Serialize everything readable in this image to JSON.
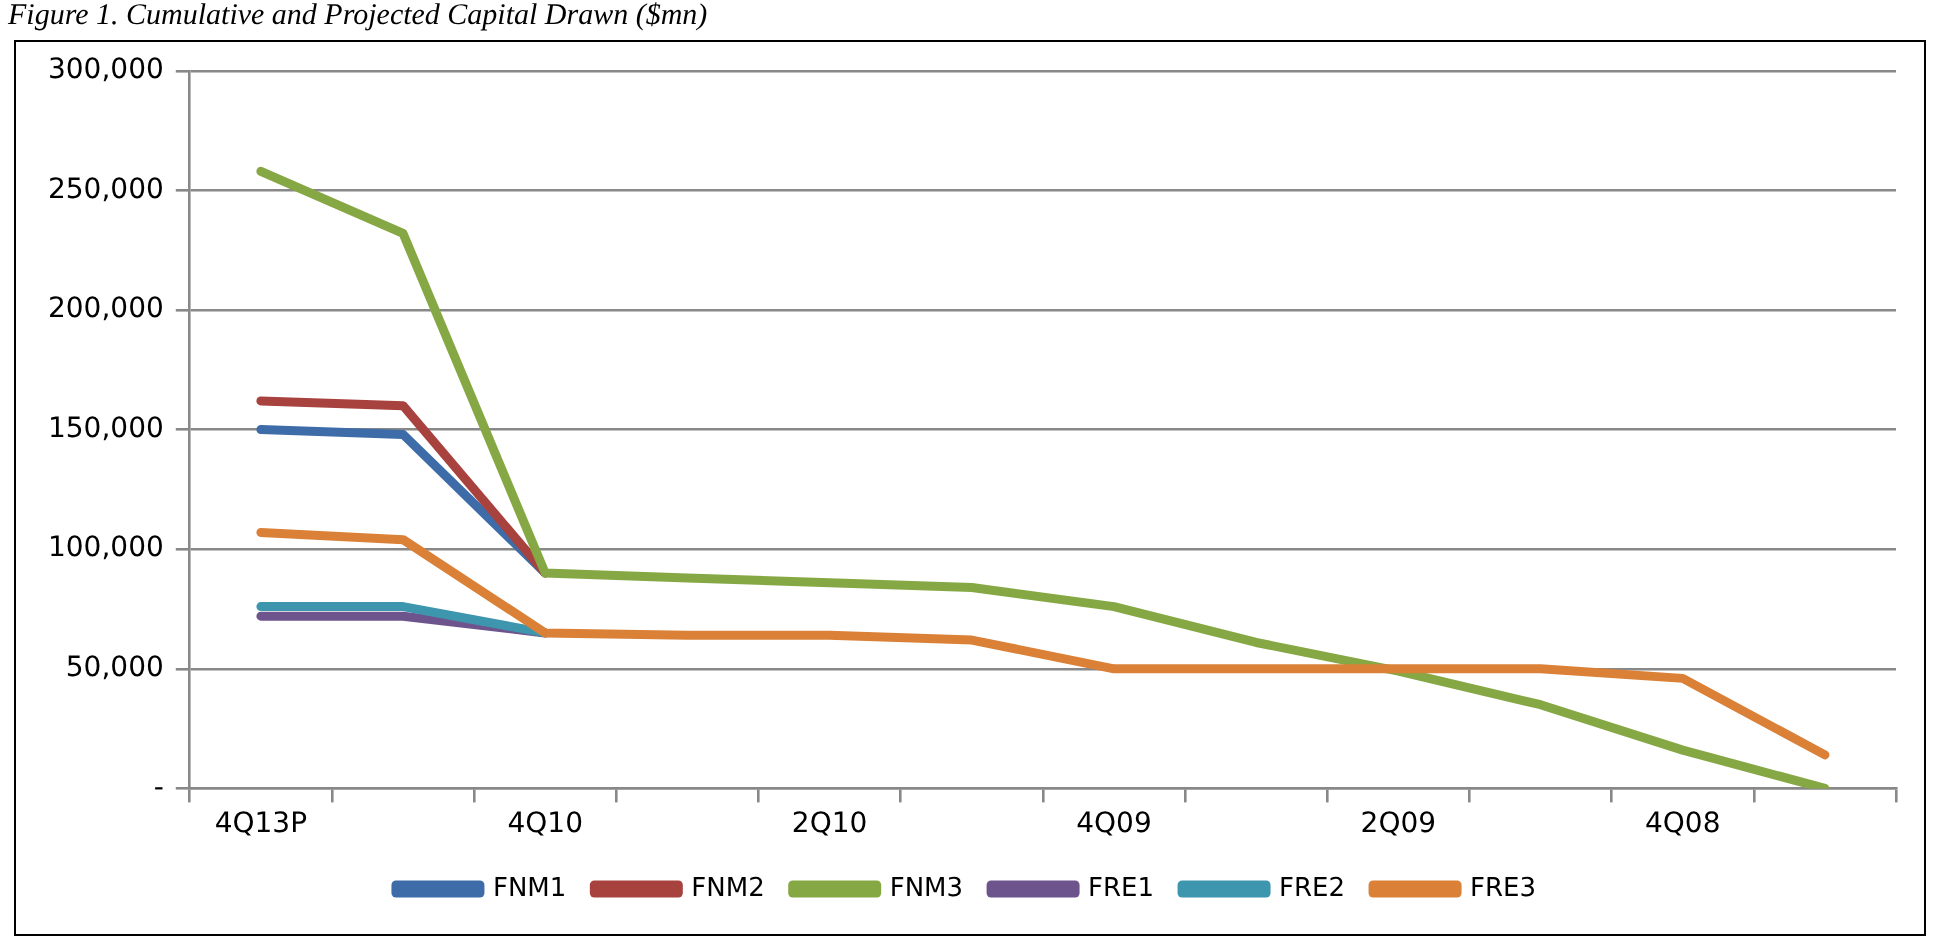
{
  "chart_data": {
    "type": "line",
    "title": "Figure 1. Cumulative and Projected Capital Drawn ($mn)",
    "categories": [
      "4Q13P",
      null,
      "4Q10",
      null,
      "2Q10",
      null,
      "4Q09",
      null,
      "2Q09",
      null,
      "4Q08",
      null
    ],
    "series": [
      {
        "name": "FNM1",
        "color": "#3d6ca8",
        "values": [
          150000,
          148000,
          90000,
          null,
          null,
          null,
          null,
          null,
          null,
          null,
          null,
          null
        ]
      },
      {
        "name": "FNM2",
        "color": "#a8423f",
        "values": [
          162000,
          160000,
          90000,
          null,
          null,
          null,
          null,
          null,
          null,
          null,
          null,
          null
        ]
      },
      {
        "name": "FNM3",
        "color": "#86a844",
        "values": [
          258000,
          232000,
          90000,
          88000,
          86000,
          84000,
          76000,
          61000,
          49000,
          35000,
          16000,
          0
        ]
      },
      {
        "name": "FRE1",
        "color": "#6e548d",
        "values": [
          72000,
          72000,
          65000,
          null,
          null,
          null,
          null,
          null,
          null,
          null,
          null,
          null
        ]
      },
      {
        "name": "FRE2",
        "color": "#3d96ae",
        "values": [
          76000,
          76000,
          65000,
          null,
          null,
          null,
          null,
          null,
          null,
          null,
          null,
          null
        ]
      },
      {
        "name": "FRE3",
        "color": "#da8137",
        "values": [
          107000,
          104000,
          65000,
          64000,
          64000,
          62000,
          50000,
          50000,
          50000,
          50000,
          46000,
          14000
        ]
      }
    ],
    "ylim": [
      0,
      300000
    ],
    "yticks": [
      {
        "value": 0,
        "label": "-"
      },
      {
        "value": 50000,
        "label": "50,000"
      },
      {
        "value": 100000,
        "label": "100,000"
      },
      {
        "value": 150000,
        "label": "150,000"
      },
      {
        "value": 200000,
        "label": "200,000"
      },
      {
        "value": 250000,
        "label": "250,000"
      },
      {
        "value": 300000,
        "label": "300,000"
      }
    ],
    "grid": "y",
    "legend": "bottom",
    "marker": "none",
    "line_style": "solid"
  }
}
